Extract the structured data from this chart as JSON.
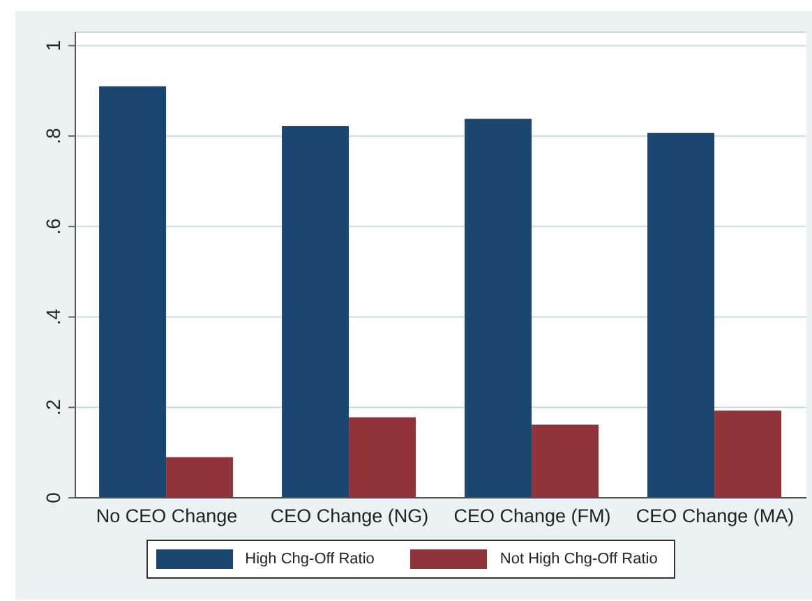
{
  "chart_data": {
    "type": "bar",
    "categories": [
      "No CEO Change",
      "CEO Change (NG)",
      "CEO Change (FM)",
      "CEO Change (MA)"
    ],
    "series": [
      {
        "name": "High Chg-Off Ratio",
        "color": "#1a476f",
        "values": [
          0.91,
          0.822,
          0.838,
          0.807
        ]
      },
      {
        "name": "Not High Chg-Off Ratio",
        "color": "#90353b",
        "values": [
          0.09,
          0.178,
          0.162,
          0.193
        ]
      }
    ],
    "ylim": [
      0,
      1.03
    ],
    "yticks": [
      {
        "value": 0,
        "label": "0"
      },
      {
        "value": 0.2,
        "label": ".2"
      },
      {
        "value": 0.4,
        "label": ".4"
      },
      {
        "value": 0.6,
        "label": ".6"
      },
      {
        "value": 0.8,
        "label": ".8"
      },
      {
        "value": 1,
        "label": "1"
      }
    ],
    "grid": "y",
    "legend": "bottom"
  }
}
